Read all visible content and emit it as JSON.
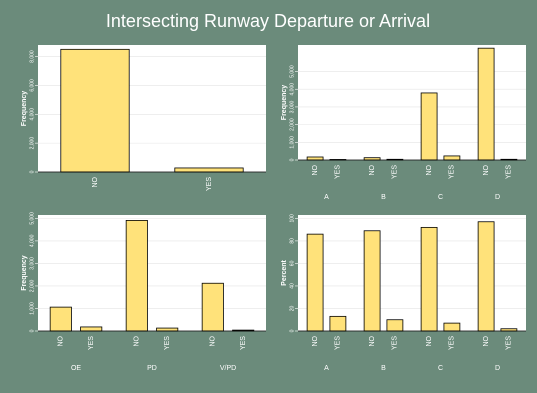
{
  "title": "Intersecting Runway Departure or Arrival",
  "chart_data": [
    {
      "type": "bar",
      "ylabel": "Frequency",
      "categories": [
        "NO",
        "YES"
      ],
      "values": [
        8500,
        280
      ],
      "ylim": [
        0,
        8800
      ],
      "yticks": [
        0,
        {
          "value": 2000,
          "label": "2,000"
        },
        {
          "value": 4000,
          "label": "4,000"
        },
        {
          "value": 6000,
          "label": "6,000"
        },
        {
          "value": 8000,
          "label": "8,000"
        }
      ],
      "grid": true,
      "color": "#ffe27a"
    },
    {
      "type": "grouped",
      "ylabel": "Frequency",
      "categories": [
        "A",
        "B",
        "C",
        "D"
      ],
      "series": [
        {
          "name": "NO",
          "color": "#ffe27a",
          "values": [
            170,
            130,
            3790,
            6320
          ]
        },
        {
          "name": "YES",
          "color": "#ffe27a",
          "values": [
            30,
            40,
            230,
            40
          ]
        }
      ],
      "ylim": [
        0,
        6500
      ],
      "yticks": [
        0,
        {
          "value": 1000,
          "label": "1,000"
        },
        {
          "value": 2000,
          "label": "2,000"
        },
        {
          "value": 3000,
          "label": "3,000"
        },
        {
          "value": 4000,
          "label": "4,000"
        },
        {
          "value": 5000,
          "label": "5,000"
        }
      ],
      "grid": true
    },
    {
      "type": "grouped",
      "ylabel": "Frequency",
      "categories": [
        "OE",
        "PD",
        "V/PD"
      ],
      "series": [
        {
          "name": "NO",
          "color": "#ffe27a",
          "values": [
            1060,
            4910,
            2120
          ]
        },
        {
          "name": "YES",
          "color": "#ffe27a",
          "values": [
            180,
            130,
            40
          ]
        }
      ],
      "ylim": [
        0,
        5150
      ],
      "yticks": [
        0,
        {
          "value": 1000,
          "label": "1,000"
        },
        {
          "value": 2000,
          "label": "2,000"
        },
        {
          "value": 3000,
          "label": "3,000"
        },
        {
          "value": 4000,
          "label": "4,000"
        },
        {
          "value": 5000,
          "label": "5,000"
        }
      ],
      "grid": true
    },
    {
      "type": "grouped",
      "ylabel": "Percent",
      "categories": [
        "A",
        "B",
        "C",
        "D"
      ],
      "series": [
        {
          "name": "NO",
          "color": "#ffe27a",
          "values": [
            86,
            89,
            92,
            97
          ]
        },
        {
          "name": "YES",
          "color": "#ffe27a",
          "values": [
            13,
            10,
            7,
            2
          ]
        }
      ],
      "ylim": [
        0,
        103
      ],
      "yticks": [
        0,
        20,
        40,
        60,
        80,
        100
      ],
      "grid": true
    }
  ]
}
